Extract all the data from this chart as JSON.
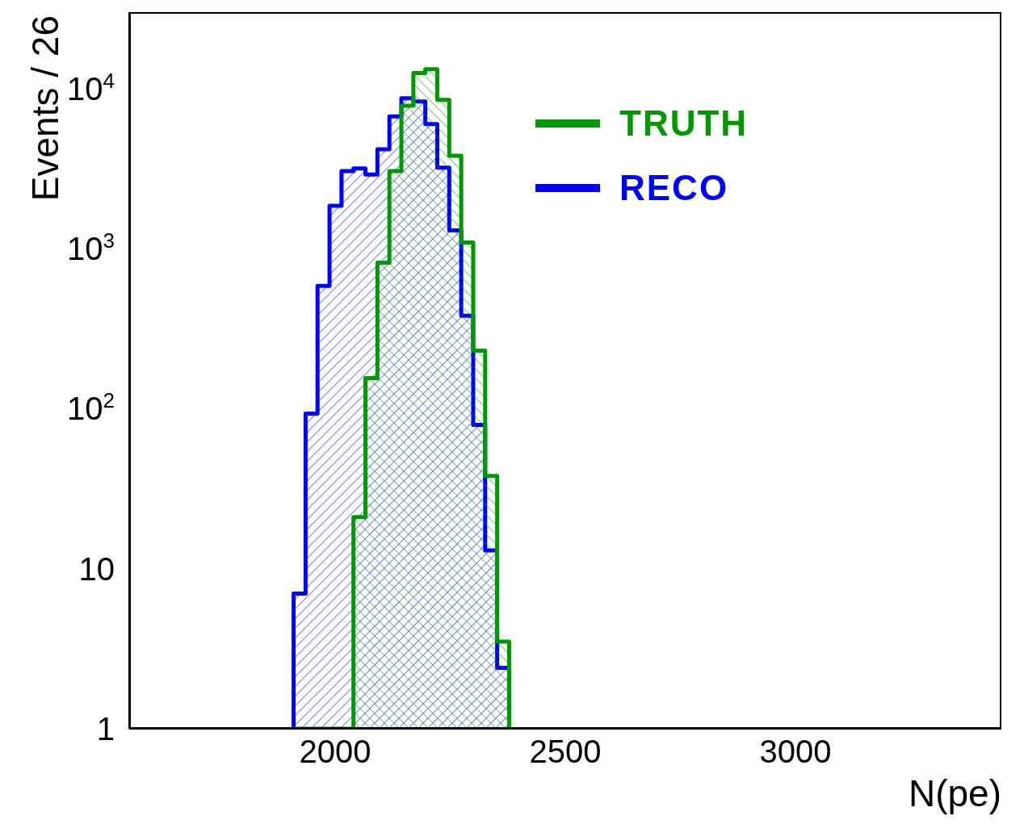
{
  "chart_data": {
    "type": "histogram",
    "xlabel": "N(pe)",
    "ylabel": "Events / 26",
    "bins": [
      1910,
      1936,
      1962,
      1988,
      2014,
      2040,
      2066,
      2092,
      2118,
      2144,
      2170,
      2196,
      2222,
      2248,
      2274,
      2300,
      2326,
      2352,
      2378
    ],
    "series": [
      {
        "name": "TRUTH",
        "color": "#009900",
        "values": [
          null,
          null,
          null,
          null,
          null,
          21,
          155,
          815,
          3050,
          7800,
          12500,
          13200,
          8500,
          3800,
          1090,
          230,
          38,
          3.5
        ]
      },
      {
        "name": "RECO",
        "color": "#0000ff",
        "values": [
          7,
          93,
          585,
          1850,
          3050,
          3160,
          2900,
          4170,
          6700,
          8700,
          8300,
          6000,
          3200,
          1300,
          380,
          79,
          13,
          2.4
        ]
      }
    ],
    "log": "y",
    "xlim": [
      1553,
      3447
    ],
    "xticks": [
      2000,
      2500,
      3000
    ],
    "ylim": [
      1,
      30000
    ],
    "yticks": [
      1,
      10,
      {
        "value": 100,
        "label": "10$^{2}$"
      },
      {
        "value": 1000,
        "label": "10$^{3}$"
      },
      {
        "value": 10000,
        "label": "10$^{4}$"
      }
    ],
    "grid": false,
    "legend": "top right"
  }
}
